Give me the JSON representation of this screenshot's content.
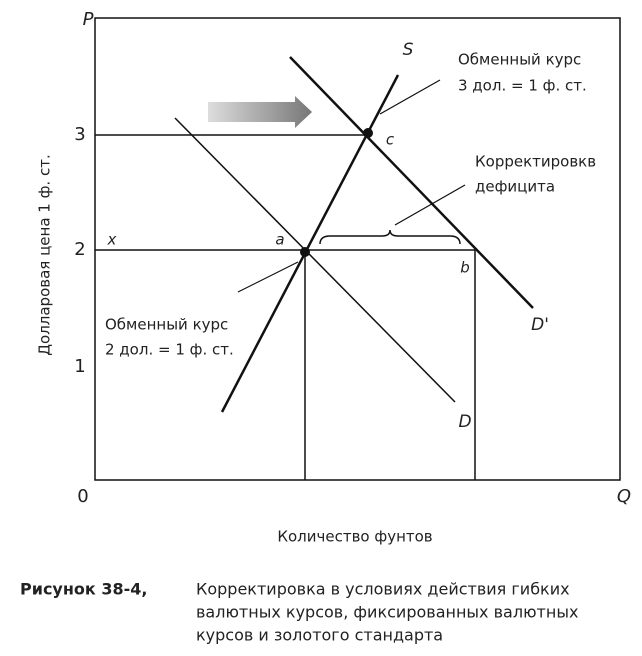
{
  "diagram": {
    "axis": {
      "y_symbol": "P",
      "x_symbol": "Q",
      "origin": "0",
      "y_ticks": [
        "3",
        "2",
        "1"
      ],
      "y_label": "Долларовая цена 1 ф. ст.",
      "x_label": "Количество фунтов"
    },
    "curves": {
      "supply": "S",
      "demand": "D",
      "demand_new": "D'"
    },
    "points": {
      "x": "x",
      "a": "a",
      "b": "b",
      "c": "c"
    },
    "annotations": {
      "rate3": [
        "Обменный курс",
        "3 дол. = 1 ф. ст."
      ],
      "deficit": [
        "Корректировкв",
        "дефицита"
      ],
      "rate2": [
        "Обменный курс",
        "2 дол. = 1 ф. ст."
      ]
    },
    "caption": {
      "label": "Рисунок 38-4,",
      "lines": [
        "Корректировка в условиях действия гибких",
        "валютных курсов, фиксированных валютных",
        "курсов и золотого стандарта"
      ]
    }
  }
}
